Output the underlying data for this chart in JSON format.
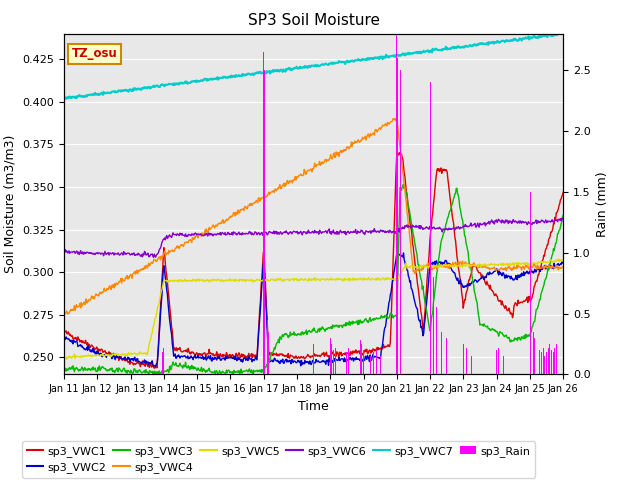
{
  "title": "SP3 Soil Moisture",
  "xlabel": "Time",
  "ylabel_left": "Soil Moisture (m3/m3)",
  "ylabel_right": "Rain (mm)",
  "ylim_left": [
    0.24,
    0.44
  ],
  "ylim_right": [
    0.0,
    2.8
  ],
  "xtick_labels": [
    "Jan 11",
    "Jan 12",
    "Jan 13",
    "Jan 14",
    "Jan 15",
    "Jan 16",
    "Jan 17",
    "Jan 18",
    "Jan 19",
    "Jan 20",
    "Jan 21",
    "Jan 22",
    "Jan 23",
    "Jan 24",
    "Jan 25",
    "Jan 26"
  ],
  "bg_color": "#e8e8e8",
  "fig_color": "#ffffff",
  "tz_label": "TZ_osu",
  "tz_bg": "#ffffcc",
  "tz_border": "#cc8800",
  "colors": {
    "vwc1": "#dd0000",
    "vwc2": "#0000cc",
    "vwc3": "#00bb00",
    "vwc4": "#ff8800",
    "vwc5": "#dddd00",
    "vwc6": "#8800cc",
    "vwc7": "#00cccc",
    "rain": "#ff00ff"
  }
}
